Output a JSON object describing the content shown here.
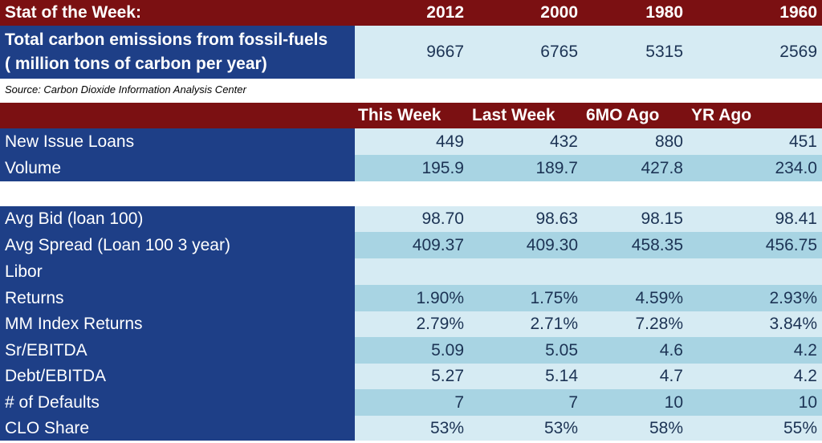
{
  "stat": {
    "title": "Stat of the Week:",
    "years": [
      "2012",
      "2000",
      "1980",
      "1960"
    ],
    "metric_line1": "Total carbon emissions from fossil-fuels",
    "metric_line2": "( million tons of carbon per year)",
    "values": [
      "9667",
      "6765",
      "5315",
      "2569"
    ],
    "source": "Source: Carbon Dioxide Information Analysis Center"
  },
  "loans": {
    "headers": [
      "This Week",
      "Last Week",
      "6MO Ago",
      "YR Ago"
    ],
    "rows": [
      {
        "label": "New Issue Loans",
        "values": [
          "449",
          "432",
          "880",
          "451"
        ]
      },
      {
        "label": "Volume",
        "values": [
          "195.9",
          "189.7",
          "427.8",
          "234.0"
        ]
      }
    ]
  },
  "market": {
    "rows": [
      {
        "label": "Avg Bid (loan 100)",
        "values": [
          "98.70",
          "98.63",
          "98.15",
          "98.41"
        ]
      },
      {
        "label": "Avg Spread (Loan 100 3 year)",
        "values": [
          "409.37",
          "409.30",
          "458.35",
          "456.75"
        ]
      },
      {
        "label": "Libor",
        "values": [
          "",
          "",
          "",
          ""
        ]
      },
      {
        "label": "Returns",
        "values": [
          "1.90%",
          "1.75%",
          "4.59%",
          "2.93%"
        ]
      },
      {
        "label": "MM Index Returns",
        "values": [
          "2.79%",
          "2.71%",
          "7.28%",
          "3.84%"
        ]
      },
      {
        "label": "Sr/EBITDA",
        "values": [
          "5.09",
          "5.05",
          "4.6",
          "4.2"
        ]
      },
      {
        "label": "Debt/EBITDA",
        "values": [
          "5.27",
          "5.14",
          "4.7",
          "4.2"
        ]
      },
      {
        "label": "# of Defaults",
        "values": [
          "7",
          "7",
          "10",
          "10"
        ]
      },
      {
        "label": "CLO Share",
        "values": [
          "53%",
          "53%",
          "58%",
          "55%"
        ]
      }
    ]
  },
  "colors": {
    "header_red": "#7b1012",
    "label_navy": "#1e3f87",
    "cell_light": "#d6ebf3",
    "cell_mid": "#a8d4e3"
  }
}
